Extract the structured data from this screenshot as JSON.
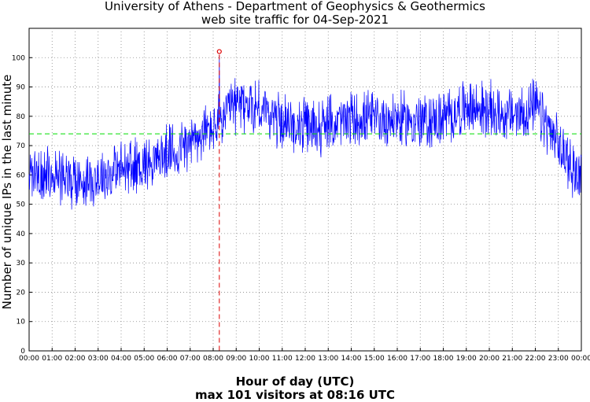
{
  "chart_data": {
    "type": "line",
    "title": "University of Athens - Department of Geophysics & Geothermics",
    "subtitle": "web site traffic for 04-Sep-2021",
    "xlabel": "Hour of day (UTC)",
    "ylabel": "Number of unique IPs in the last minute",
    "footer": "max 101 visitors at 08:16 UTC",
    "xlim_minutes": [
      0,
      1440
    ],
    "ylim": [
      0,
      110
    ],
    "yticks": [
      0,
      10,
      20,
      30,
      40,
      50,
      60,
      70,
      80,
      90,
      100
    ],
    "xticks": [
      "00:00",
      "01:00",
      "02:00",
      "03:00",
      "04:00",
      "05:00",
      "06:00",
      "07:00",
      "08:00",
      "09:00",
      "10:00",
      "11:00",
      "12:00",
      "13:00",
      "14:00",
      "15:00",
      "16:00",
      "17:00",
      "18:00",
      "19:00",
      "20:00",
      "21:00",
      "22:00",
      "23:00",
      "00:00"
    ],
    "grid": true,
    "average": 74,
    "max": {
      "value": 101,
      "time": "08:16",
      "minute": 496
    },
    "series": [
      {
        "name": "unique IPs per minute",
        "color": "#0000ff",
        "hourly_trend": [
          {
            "minute": 0,
            "value": 60
          },
          {
            "minute": 60,
            "value": 60
          },
          {
            "minute": 120,
            "value": 58
          },
          {
            "minute": 180,
            "value": 59
          },
          {
            "minute": 240,
            "value": 62
          },
          {
            "minute": 300,
            "value": 64
          },
          {
            "minute": 360,
            "value": 67
          },
          {
            "minute": 420,
            "value": 71
          },
          {
            "minute": 480,
            "value": 76
          },
          {
            "minute": 540,
            "value": 84
          },
          {
            "minute": 600,
            "value": 83
          },
          {
            "minute": 660,
            "value": 78
          },
          {
            "minute": 720,
            "value": 76
          },
          {
            "minute": 780,
            "value": 77
          },
          {
            "minute": 840,
            "value": 79
          },
          {
            "minute": 900,
            "value": 79
          },
          {
            "minute": 960,
            "value": 79
          },
          {
            "minute": 1020,
            "value": 78
          },
          {
            "minute": 1080,
            "value": 79
          },
          {
            "minute": 1140,
            "value": 83
          },
          {
            "minute": 1200,
            "value": 82
          },
          {
            "minute": 1260,
            "value": 80
          },
          {
            "minute": 1320,
            "value": 83
          },
          {
            "minute": 1380,
            "value": 70
          },
          {
            "minute": 1440,
            "value": 58
          }
        ]
      }
    ],
    "colors": {
      "average_line": "#00dd00",
      "max_marker": "#dd0000",
      "grid": "#888888"
    }
  }
}
